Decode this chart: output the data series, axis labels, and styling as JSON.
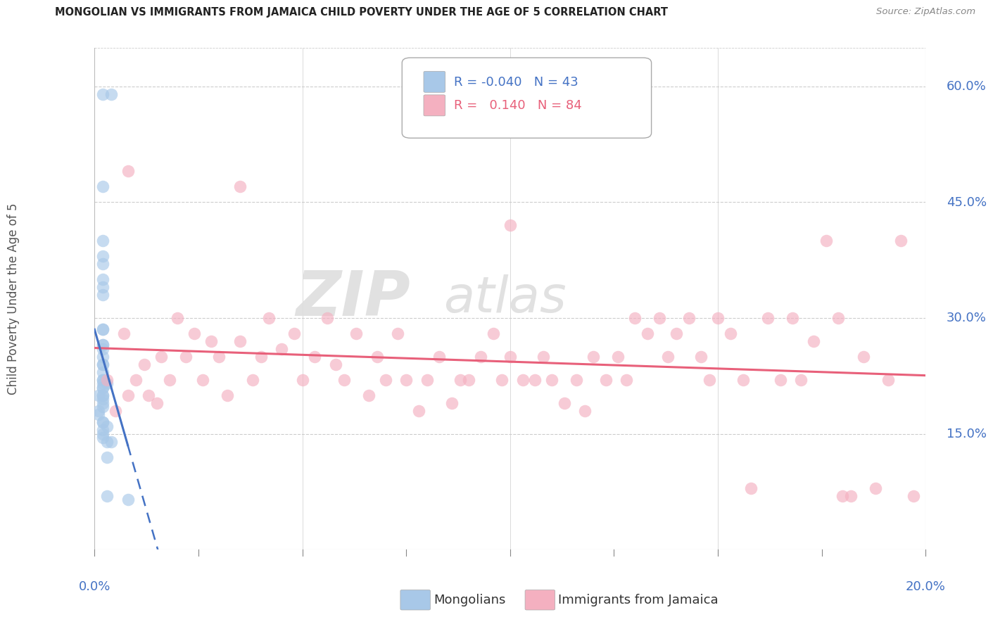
{
  "title": "MONGOLIAN VS IMMIGRANTS FROM JAMAICA CHILD POVERTY UNDER THE AGE OF 5 CORRELATION CHART",
  "source": "Source: ZipAtlas.com",
  "ylabel": "Child Poverty Under the Age of 5",
  "xlim": [
    0.0,
    0.2
  ],
  "ylim": [
    0.0,
    0.65
  ],
  "mongolian_color": "#a8c8e8",
  "jamaica_color": "#f4b0c0",
  "mongolian_trend_color": "#4472c4",
  "jamaica_trend_color": "#e8607a",
  "background_color": "#ffffff",
  "grid_color": "#cccccc",
  "right_label_color": "#4472c4",
  "title_color": "#222222",
  "source_color": "#888888",
  "axis_label_color": "#555555",
  "legend_label_mong": "R = -0.040",
  "legend_n_mong": "N = 43",
  "legend_label_jam": "R =  0.140",
  "legend_n_jam": "N = 84",
  "legend_bottom_mong": "Mongolians",
  "legend_bottom_jam": "Immigrants from Jamaica",
  "mong_x": [
    0.002,
    0.004,
    0.002,
    0.002,
    0.002,
    0.002,
    0.002,
    0.002,
    0.002,
    0.002,
    0.002,
    0.002,
    0.002,
    0.002,
    0.002,
    0.002,
    0.002,
    0.002,
    0.002,
    0.002,
    0.002,
    0.003,
    0.002,
    0.002,
    0.002,
    0.001,
    0.002,
    0.002,
    0.002,
    0.002,
    0.001,
    0.001,
    0.002,
    0.002,
    0.003,
    0.002,
    0.002,
    0.002,
    0.003,
    0.004,
    0.003,
    0.003,
    0.008
  ],
  "mong_y": [
    0.59,
    0.59,
    0.47,
    0.4,
    0.38,
    0.37,
    0.35,
    0.34,
    0.33,
    0.285,
    0.285,
    0.265,
    0.265,
    0.26,
    0.25,
    0.24,
    0.24,
    0.23,
    0.22,
    0.22,
    0.215,
    0.215,
    0.21,
    0.21,
    0.2,
    0.2,
    0.2,
    0.195,
    0.19,
    0.185,
    0.18,
    0.175,
    0.165,
    0.165,
    0.16,
    0.155,
    0.15,
    0.145,
    0.14,
    0.14,
    0.12,
    0.07,
    0.065
  ],
  "jam_x": [
    0.003,
    0.005,
    0.007,
    0.008,
    0.01,
    0.012,
    0.013,
    0.015,
    0.016,
    0.018,
    0.02,
    0.022,
    0.024,
    0.026,
    0.028,
    0.03,
    0.032,
    0.035,
    0.038,
    0.04,
    0.042,
    0.045,
    0.048,
    0.05,
    0.053,
    0.056,
    0.058,
    0.06,
    0.063,
    0.066,
    0.068,
    0.07,
    0.073,
    0.075,
    0.078,
    0.08,
    0.083,
    0.086,
    0.088,
    0.09,
    0.093,
    0.096,
    0.098,
    0.1,
    0.103,
    0.106,
    0.108,
    0.11,
    0.113,
    0.116,
    0.118,
    0.12,
    0.123,
    0.126,
    0.128,
    0.13,
    0.133,
    0.136,
    0.138,
    0.14,
    0.143,
    0.146,
    0.148,
    0.15,
    0.153,
    0.156,
    0.158,
    0.162,
    0.165,
    0.168,
    0.17,
    0.173,
    0.176,
    0.179,
    0.182,
    0.185,
    0.188,
    0.191,
    0.194,
    0.197,
    0.008,
    0.035,
    0.1,
    0.18
  ],
  "jam_y": [
    0.22,
    0.18,
    0.28,
    0.2,
    0.22,
    0.24,
    0.2,
    0.19,
    0.25,
    0.22,
    0.3,
    0.25,
    0.28,
    0.22,
    0.27,
    0.25,
    0.2,
    0.27,
    0.22,
    0.25,
    0.3,
    0.26,
    0.28,
    0.22,
    0.25,
    0.3,
    0.24,
    0.22,
    0.28,
    0.2,
    0.25,
    0.22,
    0.28,
    0.22,
    0.18,
    0.22,
    0.25,
    0.19,
    0.22,
    0.22,
    0.25,
    0.28,
    0.22,
    0.25,
    0.22,
    0.22,
    0.25,
    0.22,
    0.19,
    0.22,
    0.18,
    0.25,
    0.22,
    0.25,
    0.22,
    0.3,
    0.28,
    0.3,
    0.25,
    0.28,
    0.3,
    0.25,
    0.22,
    0.3,
    0.28,
    0.22,
    0.08,
    0.3,
    0.22,
    0.3,
    0.22,
    0.27,
    0.4,
    0.3,
    0.07,
    0.25,
    0.08,
    0.22,
    0.4,
    0.07,
    0.49,
    0.47,
    0.42,
    0.07
  ]
}
